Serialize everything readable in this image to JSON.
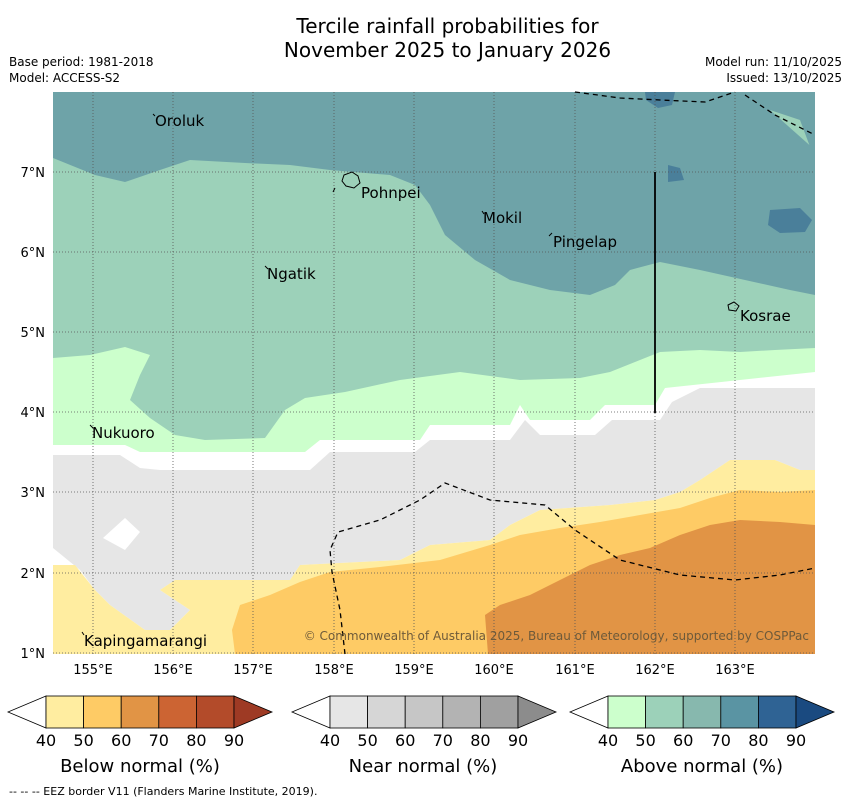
{
  "title": {
    "line1": "Tercile rainfall probabilities for",
    "line2": "November 2025 to January 2026"
  },
  "meta": {
    "base_period": "Base period: 1981-2018",
    "model": "Model: ACCESS-S2",
    "model_run": "Model run: 11/10/2025",
    "issued": "Issued: 13/10/2025"
  },
  "axes": {
    "lat_labels": [
      "7°N",
      "6°N",
      "5°N",
      "4°N",
      "3°N",
      "2°N",
      "1°N"
    ],
    "lon_labels": [
      "155°E",
      "156°E",
      "157°E",
      "158°E",
      "159°E",
      "160°E",
      "161°E",
      "162°E",
      "163°E"
    ]
  },
  "places": [
    "Oroluk",
    "Pohnpei",
    "Mokil",
    "Pingelap",
    "Ngatik",
    "Kosrae",
    "Nukuoro",
    "Kapingamarangi"
  ],
  "copyright": "© Commonwealth of Australia 2025, Bureau of Meteorology, supported by COSPPac",
  "colorbars": {
    "below": {
      "label": "Below normal (%)",
      "ticks": [
        "40",
        "50",
        "60",
        "70",
        "80",
        "90"
      ],
      "colors": [
        "#ffeda0",
        "#fecb65",
        "#e19445",
        "#cc6433",
        "#b34b2a",
        "#9e3a24"
      ]
    },
    "near": {
      "label": "Near normal (%)",
      "ticks": [
        "40",
        "50",
        "60",
        "70",
        "80",
        "90"
      ],
      "colors": [
        "#e6e6e6",
        "#d6d6d6",
        "#c6c6c6",
        "#b3b3b3",
        "#a0a0a0",
        "#8c8c8c"
      ]
    },
    "above": {
      "label": "Above normal (%)",
      "ticks": [
        "40",
        "50",
        "60",
        "70",
        "80",
        "90"
      ],
      "colors": [
        "#ccffcc",
        "#9cd1b9",
        "#87b8ae",
        "#5a94a3",
        "#2f6394",
        "#1a4a80"
      ]
    }
  },
  "footnote": "-- -- -- EEZ border V11 (Flanders Marine Institute, 2019).",
  "colors": {
    "above_70": "#6ea3a8",
    "above_60": "#9cd1b9",
    "above_50": "#ccffcc",
    "near_50": "#e6e6e6",
    "below_50": "#ffeda0",
    "below_60": "#fecb65",
    "below_70": "#e19445",
    "above_80": "#4a7f9a"
  }
}
